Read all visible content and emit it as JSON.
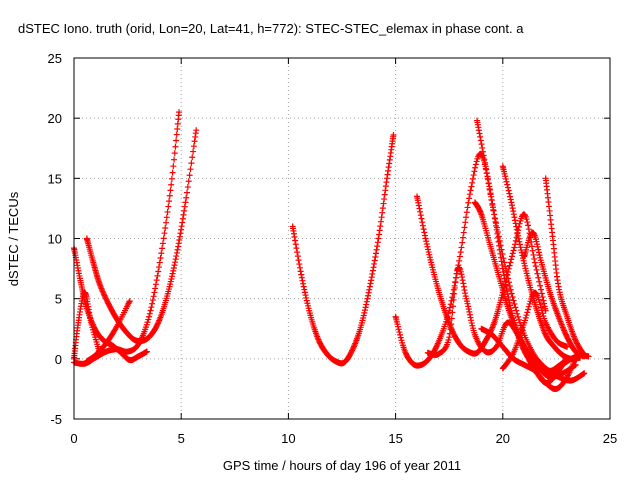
{
  "chart_data": {
    "type": "scatter",
    "title": "dSTEC Iono. truth (orid, Lon=20, Lat=41, h=772): STEC-STEC_elemax in phase cont. a",
    "xlabel": "GPS time / hours of day 196 of year 2011",
    "ylabel": "dSTEC  / TECUs",
    "xlim": [
      0,
      25
    ],
    "ylim": [
      -5,
      25
    ],
    "xticks": [
      0,
      5,
      10,
      15,
      20,
      25
    ],
    "yticks": [
      -5,
      0,
      5,
      10,
      15,
      20,
      25
    ],
    "grid": true,
    "marker": "+",
    "color": "#ff0000",
    "series": [
      {
        "x": [
          0.0,
          0.3,
          0.6,
          1.0,
          1.4,
          1.8,
          2.2,
          2.6,
          3.0,
          3.4
        ],
        "y": [
          9.2,
          6.5,
          4.2,
          2.4,
          1.5,
          1.1,
          0.5,
          -0.1,
          0.2,
          0.6
        ]
      },
      {
        "x": [
          0.0,
          0.2,
          0.5,
          0.8,
          1.2
        ],
        "y": [
          0.0,
          3.0,
          5.5,
          3.0,
          0.5
        ]
      },
      {
        "x": [
          0.6,
          0.9,
          1.2,
          1.6,
          2.0,
          2.4,
          2.8,
          3.2,
          3.6,
          4.0,
          4.4,
          4.8,
          5.2,
          5.7
        ],
        "y": [
          10.0,
          8.0,
          6.2,
          4.6,
          3.3,
          2.3,
          1.6,
          1.5,
          2.0,
          3.3,
          5.6,
          8.8,
          13.0,
          19.0
        ]
      },
      {
        "x": [
          0.0,
          0.5,
          1.0,
          1.5,
          2.0,
          2.5,
          3.0,
          3.5,
          4.0,
          4.5,
          4.9
        ],
        "y": [
          -0.3,
          -0.4,
          0.1,
          0.6,
          0.8,
          0.6,
          1.2,
          3.5,
          8.0,
          14.0,
          20.5
        ]
      },
      {
        "x": [
          0.6,
          1.0,
          1.5,
          2.0,
          2.6
        ],
        "y": [
          -0.2,
          0.3,
          1.3,
          2.7,
          4.8
        ]
      },
      {
        "x": [
          10.2,
          10.6,
          11.0,
          11.4,
          11.8,
          12.2,
          12.6,
          13.0,
          13.4,
          13.8,
          14.2,
          14.6,
          14.9
        ],
        "y": [
          11.0,
          7.0,
          3.8,
          1.6,
          0.4,
          -0.2,
          -0.3,
          0.8,
          2.8,
          6.0,
          10.0,
          15.0,
          18.6
        ]
      },
      {
        "x": [
          15.0,
          15.4,
          15.8,
          16.2,
          16.6,
          17.0,
          17.5,
          18.0,
          18.5,
          19.0,
          19.6,
          20.2,
          20.8,
          21.4,
          22.0,
          22.6,
          23.2,
          23.8
        ],
        "y": [
          3.5,
          0.8,
          -0.4,
          -0.5,
          0.1,
          1.4,
          4.0,
          8.5,
          14.0,
          17.0,
          12.0,
          7.0,
          3.0,
          0.5,
          -0.8,
          -1.5,
          -1.8,
          -1.2
        ]
      },
      {
        "x": [
          16.0,
          16.4,
          16.8,
          17.2,
          17.6,
          18.0,
          18.4,
          18.8,
          19.2,
          19.6,
          20.0,
          20.5,
          21.0,
          21.5,
          22.0
        ],
        "y": [
          13.5,
          10.0,
          7.0,
          4.5,
          2.5,
          1.2,
          0.6,
          0.5,
          1.5,
          3.0,
          5.5,
          9.0,
          12.0,
          8.0,
          4.0
        ]
      },
      {
        "x": [
          16.5,
          17.0,
          17.5,
          17.9,
          18.3,
          18.7,
          19.2,
          19.7,
          20.2,
          20.7,
          21.2,
          21.7,
          22.2,
          22.8,
          23.4
        ],
        "y": [
          0.5,
          0.4,
          1.8,
          7.5,
          5.0,
          2.0,
          0.6,
          1.0,
          3.0,
          2.0,
          0.3,
          -0.8,
          -1.5,
          -1.2,
          -0.5
        ]
      },
      {
        "x": [
          18.8,
          19.2,
          19.6,
          20.0,
          20.4,
          20.8,
          21.2,
          21.6,
          22.0,
          22.4,
          22.8,
          23.2,
          23.6,
          24.0
        ],
        "y": [
          19.8,
          16.0,
          12.0,
          7.5,
          4.0,
          1.5,
          0.0,
          -1.2,
          -2.0,
          -1.5,
          -0.5,
          0.0,
          0.3,
          0.2
        ]
      },
      {
        "x": [
          18.7,
          19.0,
          19.4,
          19.8,
          20.2,
          20.6,
          21.0,
          21.4,
          21.8,
          22.2,
          22.6,
          23.0
        ],
        "y": [
          13.0,
          12.0,
          9.5,
          7.0,
          4.5,
          2.5,
          1.0,
          0.0,
          -0.5,
          -1.0,
          -0.6,
          0.0
        ]
      },
      {
        "x": [
          20.0,
          20.4,
          20.8,
          21.2,
          21.6,
          22.0,
          22.4,
          22.8,
          23.2,
          23.6
        ],
        "y": [
          16.0,
          13.0,
          9.5,
          6.5,
          4.0,
          2.0,
          1.0,
          0.3,
          0.0,
          0.1
        ]
      },
      {
        "x": [
          21.0,
          21.4,
          21.8,
          22.2,
          22.6,
          23.0,
          23.4,
          23.8
        ],
        "y": [
          8.5,
          10.5,
          8.0,
          5.5,
          3.5,
          1.8,
          0.6,
          0.2
        ]
      },
      {
        "x": [
          22.0,
          22.3,
          22.6,
          23.0,
          23.4,
          23.8
        ],
        "y": [
          15.0,
          10.5,
          6.0,
          3.5,
          1.5,
          0.3
        ]
      },
      {
        "x": [
          19.0,
          19.5,
          20.0,
          20.5,
          21.0,
          21.5,
          22.0,
          22.5,
          23.0,
          23.5
        ],
        "y": [
          2.5,
          2.0,
          1.0,
          0.0,
          -0.5,
          -1.0,
          -2.0,
          -2.5,
          -1.5,
          0.5
        ]
      },
      {
        "x": [
          20.0,
          20.5,
          21.0,
          21.5,
          22.0,
          22.5,
          23.0
        ],
        "y": [
          -0.8,
          0.5,
          3.0,
          5.5,
          3.0,
          1.5,
          1.0
        ]
      }
    ]
  }
}
